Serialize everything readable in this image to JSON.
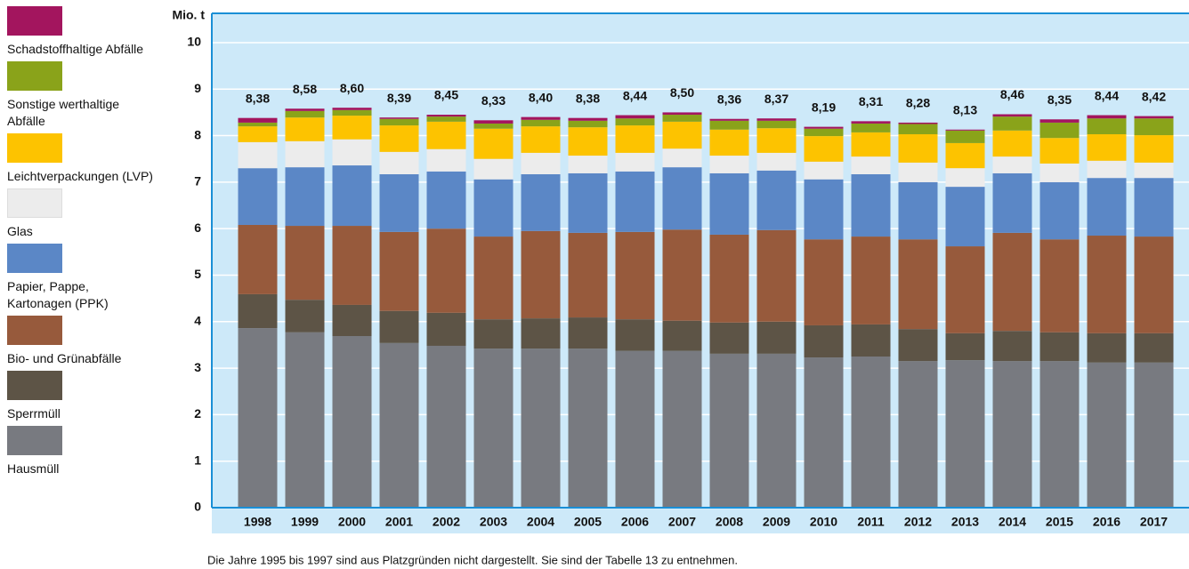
{
  "chart_data": {
    "type": "stacked-bar",
    "y_axis_label": "Mio. t",
    "note": "Die Jahre 1995 bis 1997 sind aus Platzgründen nicht dargestellt. Sie sind der Tabelle 13 zu entnehmen.",
    "categories": [
      "1998",
      "1999",
      "2000",
      "2001",
      "2002",
      "2003",
      "2004",
      "2005",
      "2006",
      "2007",
      "2008",
      "2009",
      "2010",
      "2011",
      "2012",
      "2013",
      "2014",
      "2015",
      "2016",
      "2017"
    ],
    "series": [
      {
        "name": "Hausmüll",
        "color": "#787a80",
        "values": [
          3.86,
          3.77,
          3.69,
          3.54,
          3.48,
          3.42,
          3.42,
          3.42,
          3.37,
          3.37,
          3.31,
          3.31,
          3.23,
          3.25,
          3.15,
          3.17,
          3.15,
          3.15,
          3.12,
          3.12
        ]
      },
      {
        "name": "Sperrmüll",
        "color": "#5d5446",
        "values": [
          0.73,
          0.7,
          0.67,
          0.69,
          0.71,
          0.63,
          0.65,
          0.67,
          0.68,
          0.65,
          0.67,
          0.69,
          0.69,
          0.69,
          0.69,
          0.58,
          0.65,
          0.62,
          0.63,
          0.63
        ]
      },
      {
        "name": "Bio- und Grünabfälle",
        "color": "#975a3c",
        "values": [
          1.49,
          1.59,
          1.7,
          1.7,
          1.81,
          1.78,
          1.88,
          1.82,
          1.88,
          1.96,
          1.89,
          1.97,
          1.85,
          1.89,
          1.93,
          1.87,
          2.11,
          2.0,
          2.1,
          2.08
        ]
      },
      {
        "name": "Papier, Pappe, Kartonagen (PPK)",
        "color": "#5b87c6",
        "values": [
          1.22,
          1.26,
          1.3,
          1.24,
          1.23,
          1.23,
          1.22,
          1.28,
          1.3,
          1.34,
          1.32,
          1.28,
          1.29,
          1.34,
          1.23,
          1.28,
          1.28,
          1.23,
          1.24,
          1.26
        ]
      },
      {
        "name": "Glas",
        "color": "#ececec",
        "values": [
          0.56,
          0.56,
          0.56,
          0.48,
          0.48,
          0.44,
          0.46,
          0.38,
          0.4,
          0.4,
          0.38,
          0.38,
          0.38,
          0.38,
          0.42,
          0.4,
          0.36,
          0.4,
          0.37,
          0.33
        ]
      },
      {
        "name": "Leichtverpackungen (LVP)",
        "color": "#fdc300",
        "values": [
          0.34,
          0.51,
          0.51,
          0.57,
          0.59,
          0.65,
          0.57,
          0.61,
          0.59,
          0.58,
          0.56,
          0.53,
          0.55,
          0.52,
          0.61,
          0.54,
          0.56,
          0.55,
          0.57,
          0.59
        ]
      },
      {
        "name": "Sonstige werthaltige Abfälle",
        "color": "#8aa31a",
        "values": [
          0.08,
          0.14,
          0.12,
          0.14,
          0.11,
          0.11,
          0.14,
          0.14,
          0.15,
          0.15,
          0.19,
          0.16,
          0.16,
          0.19,
          0.22,
          0.27,
          0.3,
          0.33,
          0.34,
          0.36
        ]
      },
      {
        "name": "Schadstoffhaltige Abfälle",
        "color": "#a3155e",
        "values": [
          0.1,
          0.05,
          0.05,
          0.03,
          0.04,
          0.07,
          0.06,
          0.06,
          0.07,
          0.05,
          0.04,
          0.05,
          0.04,
          0.05,
          0.03,
          0.02,
          0.05,
          0.07,
          0.07,
          0.05
        ]
      }
    ],
    "totals": {
      "values": [
        8.38,
        8.58,
        8.6,
        8.39,
        8.45,
        8.33,
        8.4,
        8.38,
        8.44,
        8.5,
        8.36,
        8.37,
        8.19,
        8.31,
        8.28,
        8.13,
        8.46,
        8.35,
        8.44,
        8.42
      ],
      "value_labels": [
        "8,38",
        "8,58",
        "8,60",
        "8,39",
        "8,45",
        "8,33",
        "8,40",
        "8,38",
        "8,44",
        "8,50",
        "8,36",
        "8,37",
        "8,19",
        "8,31",
        "8,28",
        "8,13",
        "8,46",
        "8,35",
        "8,44",
        "8,42"
      ]
    },
    "ylim": [
      0,
      10.63
    ],
    "yticks": [
      0,
      1,
      2,
      3,
      4,
      5,
      6,
      7,
      8,
      9,
      10
    ],
    "grid": true
  }
}
